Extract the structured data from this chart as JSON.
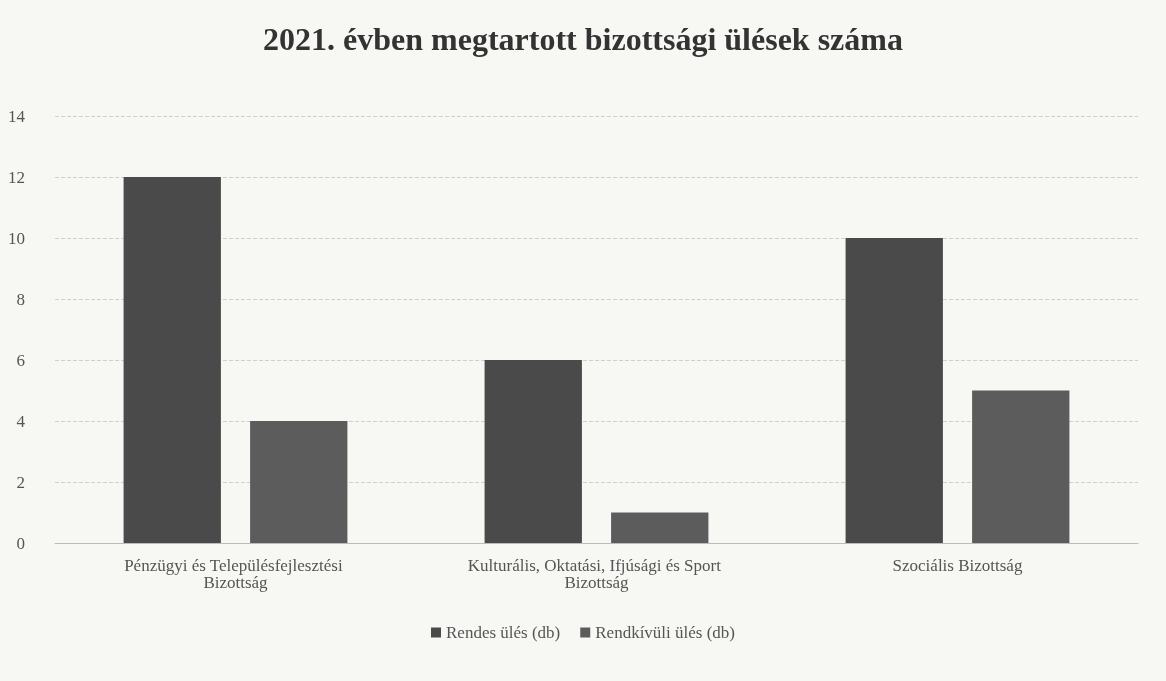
{
  "chart_data": {
    "type": "bar",
    "title": "2021. évben megtartott bizottsági ülések száma",
    "categories": [
      "Pénzügyi és Településfejlesztési Bizottság",
      "Kulturális, Oktatási, Ifjúsági és Sport Bizottság",
      "Szociális Bizottság"
    ],
    "series": [
      {
        "name": "Rendes ülés (db)",
        "color": "#4a4a4a",
        "values": [
          12,
          6,
          10
        ]
      },
      {
        "name": "Rendkívüli ülés (db)",
        "color": "#5c5c5c",
        "values": [
          4,
          1,
          5
        ]
      }
    ],
    "ylim": [
      0,
      14
    ],
    "yticks": [
      0,
      2,
      4,
      6,
      8,
      10,
      12,
      14
    ],
    "grid": "y",
    "legend": "bottom"
  }
}
